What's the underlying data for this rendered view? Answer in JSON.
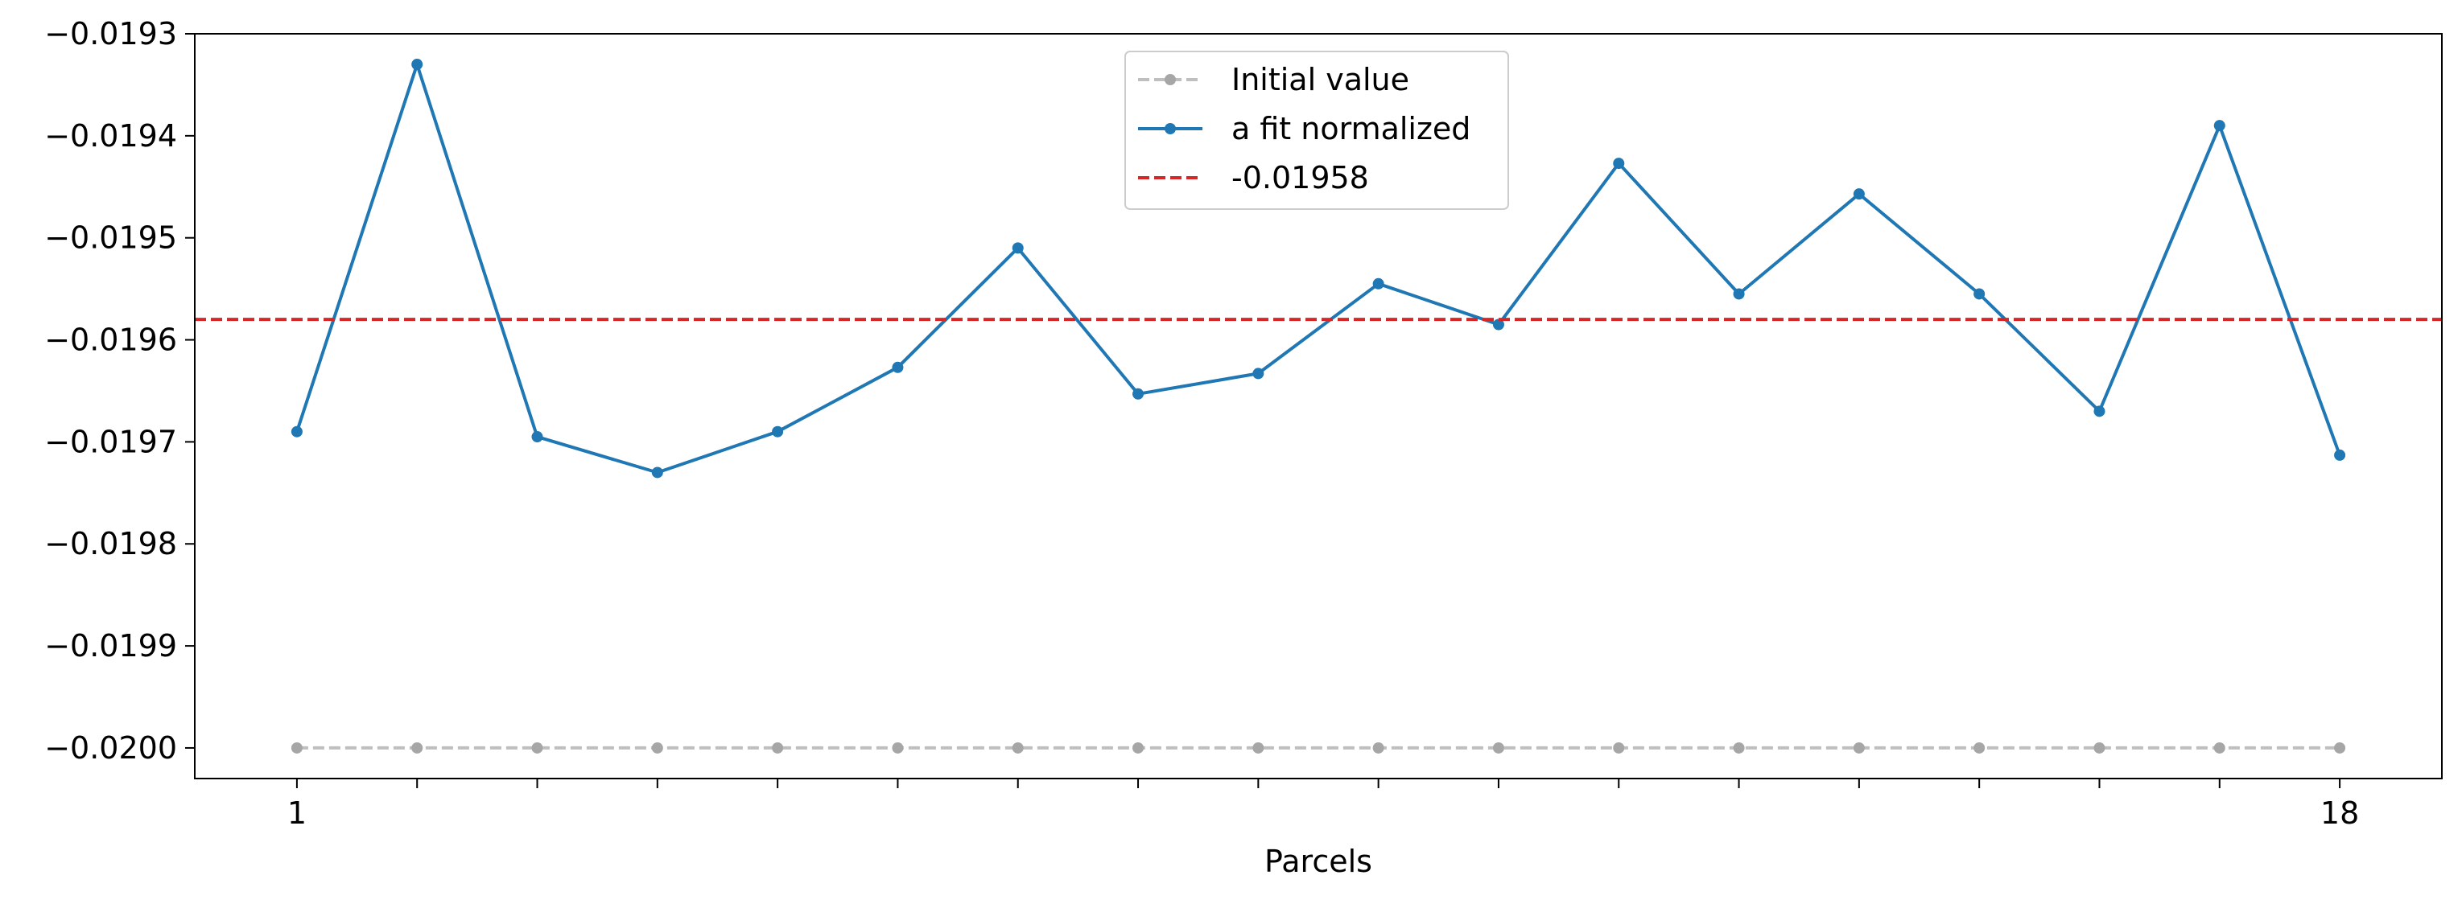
{
  "chart_data": {
    "type": "line",
    "title": "",
    "xlabel": "Parcels",
    "ylabel": "",
    "x": [
      1,
      2,
      3,
      4,
      5,
      6,
      7,
      8,
      9,
      10,
      11,
      12,
      13,
      14,
      15,
      16,
      17,
      18
    ],
    "x_tick_labels": [
      {
        "x": 1,
        "label": "1"
      },
      {
        "x": 18,
        "label": "18"
      }
    ],
    "xlim": [
      0.15,
      18.85
    ],
    "ylim": [
      -0.02003,
      -0.0193
    ],
    "y_ticks": [
      -0.0193,
      -0.0194,
      -0.0195,
      -0.0196,
      -0.0197,
      -0.0198,
      -0.0199,
      -0.02
    ],
    "y_tick_labels": [
      "−0.0193",
      "−0.0194",
      "−0.0195",
      "−0.0196",
      "−0.0197",
      "−0.0198",
      "−0.0199",
      "−0.0200"
    ],
    "grid": false,
    "legend_position": "upper-center",
    "series": [
      {
        "name": "Initial value",
        "style": "dashed-with-markers",
        "color": "#bfbfbf",
        "marker_color": "#a6a6a6",
        "values": [
          -0.02,
          -0.02,
          -0.02,
          -0.02,
          -0.02,
          -0.02,
          -0.02,
          -0.02,
          -0.02,
          -0.02,
          -0.02,
          -0.02,
          -0.02,
          -0.02,
          -0.02,
          -0.02,
          -0.02,
          -0.02
        ]
      },
      {
        "name": "a fit normalized",
        "style": "solid-with-markers",
        "color": "#1f77b4",
        "values": [
          -0.01969,
          -0.01933,
          -0.019695,
          -0.01973,
          -0.01969,
          -0.019627,
          -0.01951,
          -0.019653,
          -0.019633,
          -0.019545,
          -0.019585,
          -0.019427,
          -0.019555,
          -0.019457,
          -0.019555,
          -0.01967,
          -0.01939,
          -0.019713
        ]
      }
    ],
    "reference_lines": [
      {
        "name": "-0.01958",
        "y": -0.01958,
        "style": "dashed",
        "color": "#d62728"
      }
    ]
  }
}
